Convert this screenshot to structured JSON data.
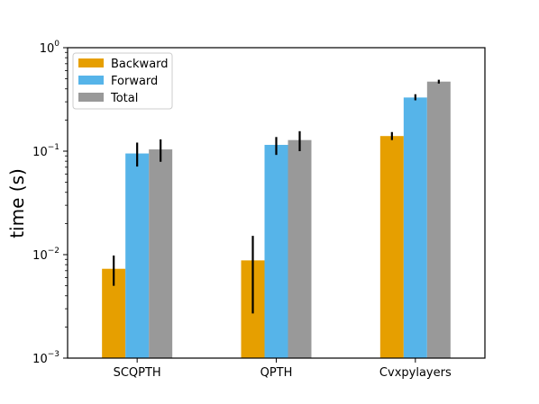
{
  "chart_data": {
    "type": "bar",
    "yscale": "log",
    "ylim": [
      0.001,
      1
    ],
    "ylabel": "time (s)",
    "xlabel": "",
    "title": "",
    "grid": false,
    "legend_position": "top-left",
    "categories": [
      "SCQPTH",
      "QPTH",
      "Cvxpylayers"
    ],
    "y_ticks": [
      {
        "value": 0.001,
        "base": "10",
        "exp": "−3"
      },
      {
        "value": 0.01,
        "base": "10",
        "exp": "−2"
      },
      {
        "value": 0.1,
        "base": "10",
        "exp": "−1"
      },
      {
        "value": 1,
        "base": "10",
        "exp": "0"
      }
    ],
    "series": [
      {
        "name": "Backward",
        "color": "#E69F00",
        "values": [
          0.0073,
          0.0088,
          0.14
        ],
        "err_low": [
          0.005,
          0.0027,
          0.128
        ],
        "err_high": [
          0.0098,
          0.0152,
          0.153
        ]
      },
      {
        "name": "Forward",
        "color": "#56B4E9",
        "values": [
          0.095,
          0.115,
          0.33
        ],
        "err_low": [
          0.071,
          0.092,
          0.31
        ],
        "err_high": [
          0.121,
          0.137,
          0.355
        ]
      },
      {
        "name": "Total",
        "color": "#999999",
        "values": [
          0.104,
          0.128,
          0.47
        ],
        "err_low": [
          0.079,
          0.1,
          0.45
        ],
        "err_high": [
          0.13,
          0.156,
          0.49
        ]
      }
    ]
  }
}
